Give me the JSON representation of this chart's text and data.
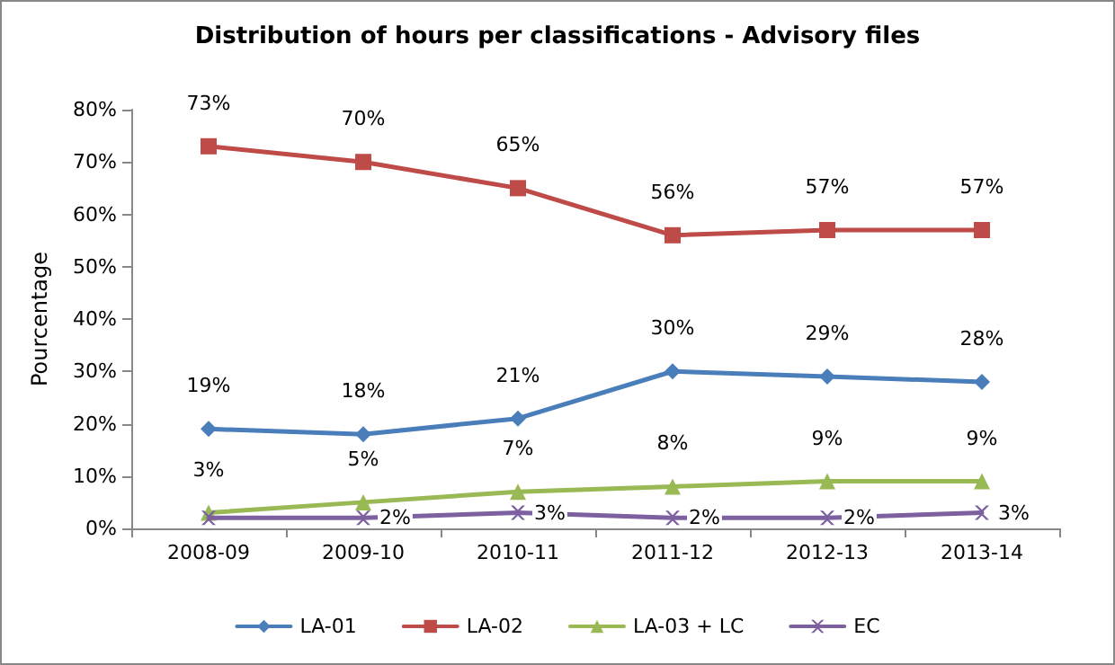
{
  "chart_data": {
    "type": "line",
    "title": "Distribution of hours per classifications - Advisory files",
    "ylabel": "Pourcentage",
    "categories": [
      "2008-09",
      "2009-10",
      "2010-11",
      "2011-12",
      "2012-13",
      "2013-14"
    ],
    "series": [
      {
        "name": "LA-01",
        "color": "#4a7ebb",
        "marker": "diamond",
        "values": [
          19,
          18,
          21,
          30,
          29,
          28
        ],
        "value_labels": [
          "19%",
          "18%",
          "21%",
          "30%",
          "29%",
          "28%"
        ]
      },
      {
        "name": "LA-02",
        "color": "#be4b48",
        "marker": "square",
        "values": [
          73,
          70,
          65,
          56,
          57,
          57
        ],
        "value_labels": [
          "73%",
          "70%",
          "65%",
          "56%",
          "57%",
          "57%"
        ]
      },
      {
        "name": "LA-03 + LC",
        "color": "#98b954",
        "marker": "triangle",
        "values": [
          3,
          5,
          7,
          8,
          9,
          9
        ],
        "value_labels": [
          "3%",
          "5%",
          "7%",
          "8%",
          "9%",
          "9%"
        ]
      },
      {
        "name": "EC",
        "color": "#7d60a0",
        "marker": "cross",
        "values": [
          2,
          2,
          3,
          2,
          2,
          3
        ],
        "value_labels": [
          null,
          "2%",
          "3%",
          "2%",
          "2%",
          "3%"
        ]
      }
    ],
    "ylim": [
      0,
      80
    ],
    "yticks": [
      {
        "value": 0,
        "label": "0%"
      },
      {
        "value": 10,
        "label": "10%"
      },
      {
        "value": 20,
        "label": "20%"
      },
      {
        "value": 30,
        "label": "30%"
      },
      {
        "value": 40,
        "label": "40%"
      },
      {
        "value": 50,
        "label": "50%"
      },
      {
        "value": 60,
        "label": "60%"
      },
      {
        "value": 70,
        "label": "70%"
      },
      {
        "value": 80,
        "label": "80%"
      }
    ],
    "grid": false,
    "legend": "bottom",
    "line_style": "solid"
  }
}
